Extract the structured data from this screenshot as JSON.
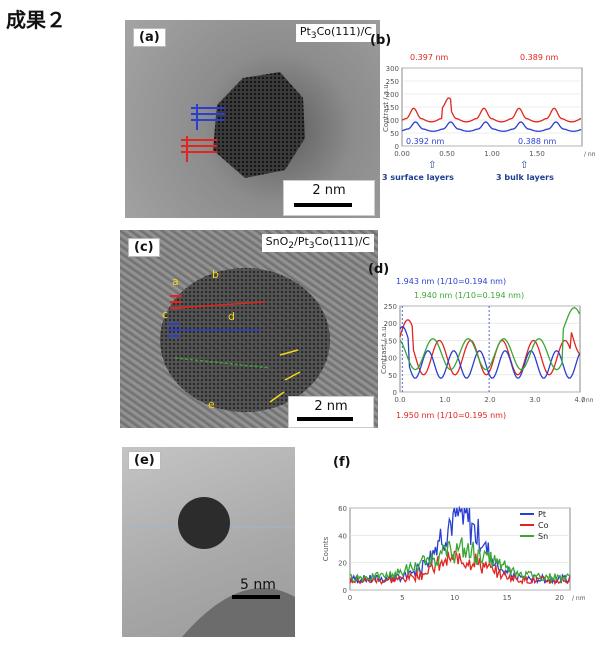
{
  "page_title": "成果２",
  "panel_a": {
    "label": "(a)",
    "sample": "Pt3Co(111)/C",
    "scale": "2 nm"
  },
  "panel_b": {
    "label": "(b)",
    "ylabel": "Contrast / a.u.",
    "xunit": "/ nm",
    "ann_red_1": "0.397 nm",
    "ann_red_2": "0.389 nm",
    "ann_blue_1": "0.392 nm",
    "ann_blue_2": "0.388 nm",
    "note_surface": "3 surface layers",
    "note_bulk": "3 bulk layers"
  },
  "panel_c": {
    "label": "(c)",
    "sample": "SnO2/Pt3Co(111)/C",
    "scale": "2 nm"
  },
  "panel_d": {
    "label": "(d)",
    "ylabel": "Contrast / a.u.",
    "xunit": "/ nm",
    "ann_1": "1.943 nm (1/10=0.194 nm)",
    "ann_2": "1.940 nm (1/10=0.194 nm)",
    "ann_3": "1.950 nm (1/10=0.195 nm)"
  },
  "panel_e": {
    "label": "(e)",
    "scale": "5 nm"
  },
  "panel_f": {
    "label": "(f)",
    "ylabel": "Counts",
    "xunit": "/ nm",
    "legend": [
      "Pt",
      "Co",
      "Sn"
    ]
  },
  "colors": {
    "red": "#e0261e",
    "blue": "#2a3fd0",
    "green": "#3aa636"
  },
  "chart_data": [
    {
      "type": "line",
      "id": "b",
      "xlim": [
        0,
        2.0
      ],
      "ylim": [
        0,
        300
      ],
      "xticks": [
        "0.00",
        "0.50",
        "1.00",
        "1.50"
      ],
      "yticks": [
        "0",
        "50",
        "100",
        "150",
        "200",
        "250",
        "300"
      ],
      "series": [
        {
          "color": "red",
          "period": 0.39,
          "base": 105,
          "amp": 80
        },
        {
          "color": "blue",
          "period": 0.39,
          "base": 65,
          "amp": 55
        }
      ]
    },
    {
      "type": "line",
      "id": "d",
      "xlim": [
        0,
        4.0
      ],
      "ylim": [
        0,
        250
      ],
      "xticks": [
        "0.0",
        "1.0",
        "2.0",
        "3.0",
        "4.0"
      ],
      "yticks": [
        "0",
        "50",
        "100",
        "150",
        "200",
        "250"
      ],
      "series": [
        {
          "color": "red"
        },
        {
          "color": "blue"
        },
        {
          "color": "green"
        }
      ]
    },
    {
      "type": "line",
      "id": "f",
      "xlim": [
        0,
        21
      ],
      "ylim": [
        0,
        60
      ],
      "xticks": [
        "0",
        "5",
        "10",
        "15",
        "20"
      ],
      "yticks": [
        "0",
        "20",
        "40",
        "60"
      ],
      "series": [
        {
          "name": "Pt",
          "color": "blue"
        },
        {
          "name": "Co",
          "color": "red"
        },
        {
          "name": "Sn",
          "color": "green"
        }
      ]
    }
  ]
}
